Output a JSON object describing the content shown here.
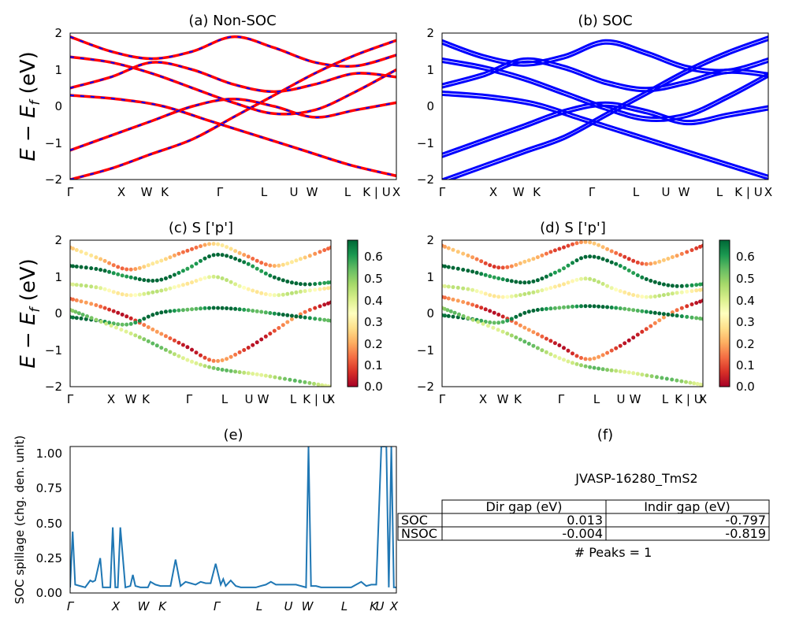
{
  "kpath": [
    "Γ",
    "X",
    "W",
    "K",
    "Γ",
    "L",
    "U",
    "W",
    "L",
    "K | U",
    "X"
  ],
  "colorbar": {
    "ticks": [
      "0.0",
      "0.1",
      "0.2",
      "0.3",
      "0.4",
      "0.5",
      "0.6"
    ],
    "colors": [
      "#a50026",
      "#d73027",
      "#f46d43",
      "#fdae61",
      "#fee08b",
      "#ffffbf",
      "#d9ef8b",
      "#a6d96a",
      "#66bd63",
      "#1a9850",
      "#006837"
    ]
  },
  "chart_data": [
    {
      "id": "a",
      "type": "line",
      "title": "(a) Non-SOC",
      "ylabel": "E − E_f (eV)",
      "ylim": [
        -2,
        2
      ],
      "yticks": [
        "2",
        "1",
        "0",
        "−1",
        "−2"
      ],
      "xlabels": [
        "Γ",
        "X",
        "W",
        "K",
        "Γ",
        "L",
        "U",
        "W",
        "L",
        "K | U",
        "X"
      ],
      "colors": {
        "spin_up": "#ff0000",
        "spin_down": "#0000ff"
      },
      "series": [
        {
          "values": [
            -2.0,
            -1.7,
            -1.3,
            -0.9,
            -0.3,
            0.3,
            0.9,
            1.4,
            1.8
          ]
        },
        {
          "values": [
            1.35,
            1.2,
            0.9,
            0.5,
            0.1,
            -0.2,
            -0.1,
            0.4,
            1.0
          ]
        },
        {
          "values": [
            0.3,
            0.2,
            0.0,
            -0.4,
            -0.8,
            -1.2,
            -1.6,
            -1.9
          ]
        },
        {
          "values": [
            0.5,
            0.8,
            1.2,
            1.0,
            0.6,
            0.4,
            0.6,
            0.9,
            0.8
          ]
        },
        {
          "values": [
            1.9,
            1.5,
            1.3,
            1.5,
            1.9,
            1.6,
            1.2,
            1.1,
            1.4
          ]
        },
        {
          "values": [
            -1.2,
            -0.8,
            -0.4,
            0.0,
            0.2,
            0.0,
            -0.3,
            -0.1,
            0.1
          ]
        }
      ]
    },
    {
      "id": "b",
      "type": "line",
      "title": "(b) SOC",
      "ylim": [
        -2,
        2
      ],
      "yticks": [
        "2",
        "1",
        "0",
        "−1",
        "−2"
      ],
      "xlabels": [
        "Γ",
        "X",
        "W",
        "K",
        "Γ",
        "L",
        "U",
        "W",
        "L",
        "K | U",
        "X"
      ],
      "colors": {
        "bands": "#0000ff"
      },
      "series": [
        {
          "values": [
            -2.0,
            -1.6,
            -1.2,
            -0.8,
            -0.2,
            0.4,
            1.0,
            1.5,
            1.9
          ]
        },
        {
          "values": [
            1.3,
            1.1,
            0.8,
            0.4,
            0.0,
            -0.3,
            -0.2,
            0.3,
            0.9
          ]
        },
        {
          "values": [
            0.4,
            0.3,
            0.1,
            -0.3,
            -0.7,
            -1.1,
            -1.5,
            -1.9
          ]
        },
        {
          "values": [
            0.6,
            0.9,
            1.3,
            1.1,
            0.7,
            0.5,
            0.7,
            1.0,
            0.9
          ]
        },
        {
          "values": [
            1.8,
            1.4,
            1.2,
            1.4,
            1.8,
            1.5,
            1.1,
            1.0,
            1.3
          ]
        },
        {
          "values": [
            -1.3,
            -0.9,
            -0.5,
            -0.1,
            0.1,
            -0.1,
            -0.4,
            -0.2,
            0.0
          ]
        }
      ]
    },
    {
      "id": "c",
      "type": "scatter",
      "title": "(c)  S ['p']",
      "ylabel": "E − E_f (eV)",
      "ylim": [
        -2,
        2
      ],
      "yticks": [
        "2",
        "1",
        "0",
        "−1",
        "−2"
      ],
      "xlabels": [
        "Γ",
        "X",
        "W",
        "K",
        "Γ",
        "L",
        "U",
        "W",
        "L",
        "K | U",
        "X"
      ],
      "series": [
        {
          "values": [
            1.3,
            1.2,
            1.0,
            0.9,
            1.2,
            1.6,
            1.4,
            1.0,
            0.8,
            0.85
          ],
          "weight": 0.65
        },
        {
          "values": [
            0.4,
            0.2,
            -0.1,
            -0.5,
            -0.9,
            -1.3,
            -1.0,
            -0.5,
            0.0,
            0.3
          ],
          "weight": 0.1
        },
        {
          "values": [
            -0.1,
            -0.2,
            -0.3,
            0.0,
            0.1,
            0.15,
            0.1,
            0.0,
            -0.1,
            -0.2
          ],
          "weight": 0.6
        },
        {
          "values": [
            1.8,
            1.5,
            1.2,
            1.4,
            1.7,
            1.9,
            1.6,
            1.3,
            1.5,
            1.8
          ],
          "weight": 0.2
        },
        {
          "values": [
            0.1,
            -0.6,
            -1.4,
            -1.7,
            -2.0
          ],
          "weight": 0.45
        },
        {
          "values": [
            0.8,
            0.7,
            0.5,
            0.6,
            0.8,
            1.0,
            0.7,
            0.5,
            0.6,
            0.7
          ],
          "weight": 0.35
        }
      ]
    },
    {
      "id": "d",
      "type": "scatter",
      "title": "(d) S ['p']",
      "ylim": [
        -2,
        2
      ],
      "yticks": [
        "2",
        "1",
        "0",
        "−1",
        "−2"
      ],
      "xlabels": [
        "Γ",
        "X",
        "W",
        "K",
        "Γ",
        "L",
        "U",
        "W",
        "L",
        "K | U",
        "X"
      ],
      "series": [
        {
          "values": [
            1.3,
            1.15,
            0.95,
            0.85,
            1.15,
            1.55,
            1.35,
            0.95,
            0.75,
            0.8
          ],
          "weight": 0.65
        },
        {
          "values": [
            0.45,
            0.25,
            -0.05,
            -0.45,
            -0.85,
            -1.25,
            -0.95,
            -0.45,
            0.05,
            0.35
          ],
          "weight": 0.1
        },
        {
          "values": [
            -0.05,
            -0.15,
            -0.25,
            0.05,
            0.15,
            0.2,
            0.15,
            0.05,
            -0.05,
            -0.15
          ],
          "weight": 0.6
        },
        {
          "values": [
            1.85,
            1.55,
            1.25,
            1.45,
            1.75,
            1.95,
            1.65,
            1.35,
            1.55,
            1.85
          ],
          "weight": 0.15
        },
        {
          "values": [
            0.15,
            -0.55,
            -1.35,
            -1.65,
            -1.95
          ],
          "weight": 0.45
        },
        {
          "values": [
            0.75,
            0.65,
            0.45,
            0.55,
            0.75,
            0.95,
            0.65,
            0.45,
            0.55,
            0.65
          ],
          "weight": 0.35
        }
      ]
    },
    {
      "id": "e",
      "type": "line",
      "title": "(e)",
      "ylabel": "SOC spillage (chg. den. unit)",
      "ylim": [
        0,
        1.05
      ],
      "yticks": [
        "1.00",
        "0.75",
        "0.50",
        "0.25",
        "0.00"
      ],
      "xlabels": [
        "Γ",
        "X",
        "W",
        "K",
        "Γ",
        "L",
        "U",
        "W",
        "L",
        "K",
        "U",
        "X"
      ],
      "x": [
        0,
        1,
        2,
        4,
        6,
        8,
        9,
        10,
        12,
        13,
        14,
        16,
        17,
        18,
        19,
        20,
        22,
        24,
        25,
        26,
        28,
        30,
        31,
        32,
        34,
        36,
        38,
        40,
        42,
        44,
        46,
        48,
        50,
        52,
        54,
        56,
        58,
        60,
        61,
        62,
        64,
        66,
        68,
        70,
        72,
        74,
        76,
        78,
        80,
        82,
        84,
        86,
        88,
        90,
        92,
        94,
        95,
        96,
        98,
        100,
        102,
        104,
        106,
        108,
        110,
        112,
        114,
        116,
        118,
        120,
        122,
        124,
        126,
        127,
        128,
        129,
        130
      ],
      "values": [
        0.04,
        0.44,
        0.06,
        0.05,
        0.04,
        0.09,
        0.08,
        0.09,
        0.25,
        0.04,
        0.04,
        0.04,
        0.47,
        0.04,
        0.04,
        0.47,
        0.04,
        0.05,
        0.13,
        0.05,
        0.04,
        0.04,
        0.04,
        0.08,
        0.06,
        0.05,
        0.05,
        0.05,
        0.24,
        0.05,
        0.08,
        0.07,
        0.06,
        0.08,
        0.07,
        0.07,
        0.21,
        0.06,
        0.1,
        0.05,
        0.09,
        0.05,
        0.04,
        0.04,
        0.04,
        0.04,
        0.05,
        0.06,
        0.08,
        0.06,
        0.06,
        0.06,
        0.06,
        0.06,
        0.05,
        0.04,
        1.05,
        0.05,
        0.05,
        0.04,
        0.04,
        0.04,
        0.04,
        0.04,
        0.04,
        0.04,
        0.06,
        0.08,
        0.05,
        0.06,
        0.06,
        1.05,
        1.05,
        0.04,
        1.05,
        0.04,
        0.04
      ],
      "color": "#1f77b4"
    }
  ],
  "panel_f": {
    "title": "(f)",
    "material": "JVASP-16280_TmS2",
    "headers": [
      "Dir gap (eV)",
      "Indir gap (eV)"
    ],
    "rows": [
      {
        "label": "SOC",
        "dir": "0.013",
        "indir": "-0.797"
      },
      {
        "label": "NSOC",
        "dir": "-0.004",
        "indir": "-0.819"
      }
    ],
    "peaks": "# Peaks = 1"
  }
}
